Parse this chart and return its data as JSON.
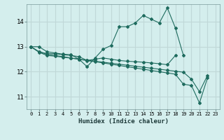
{
  "xlabel": "Humidex (Indice chaleur)",
  "background_color": "#d4eeed",
  "grid_color": "#c0d8d8",
  "line_color": "#1e6b5e",
  "x_ticks": [
    0,
    1,
    2,
    3,
    4,
    5,
    6,
    7,
    8,
    9,
    10,
    11,
    12,
    13,
    14,
    15,
    16,
    17,
    18,
    19,
    20,
    21,
    22,
    23
  ],
  "y_ticks": [
    11,
    12,
    13,
    14
  ],
  "ylim": [
    10.5,
    14.7
  ],
  "xlim": [
    -0.5,
    23.5
  ],
  "series": [
    [
      13.0,
      13.0,
      12.8,
      12.75,
      12.7,
      12.68,
      12.5,
      12.2,
      12.55,
      12.9,
      13.05,
      13.8,
      13.8,
      13.95,
      14.25,
      14.1,
      13.95,
      14.55,
      13.75,
      12.65,
      null,
      null,
      null,
      null
    ],
    [
      13.0,
      12.8,
      12.72,
      12.72,
      12.68,
      12.65,
      12.6,
      12.45,
      12.5,
      12.55,
      12.5,
      12.45,
      12.42,
      12.4,
      12.38,
      12.35,
      12.32,
      12.28,
      12.65,
      null,
      null,
      null,
      null,
      null
    ],
    [
      13.0,
      12.8,
      12.7,
      12.65,
      12.6,
      12.55,
      12.5,
      12.44,
      12.4,
      12.35,
      12.3,
      12.25,
      12.2,
      12.15,
      12.1,
      12.05,
      12.0,
      11.95,
      11.9,
      11.5,
      11.45,
      10.75,
      11.75,
      null
    ],
    [
      13.0,
      12.78,
      12.65,
      12.62,
      12.58,
      12.54,
      12.5,
      12.46,
      12.42,
      12.38,
      12.34,
      12.3,
      12.26,
      12.22,
      12.18,
      12.14,
      12.1,
      12.06,
      12.02,
      11.98,
      11.7,
      11.2,
      11.85,
      null
    ]
  ]
}
